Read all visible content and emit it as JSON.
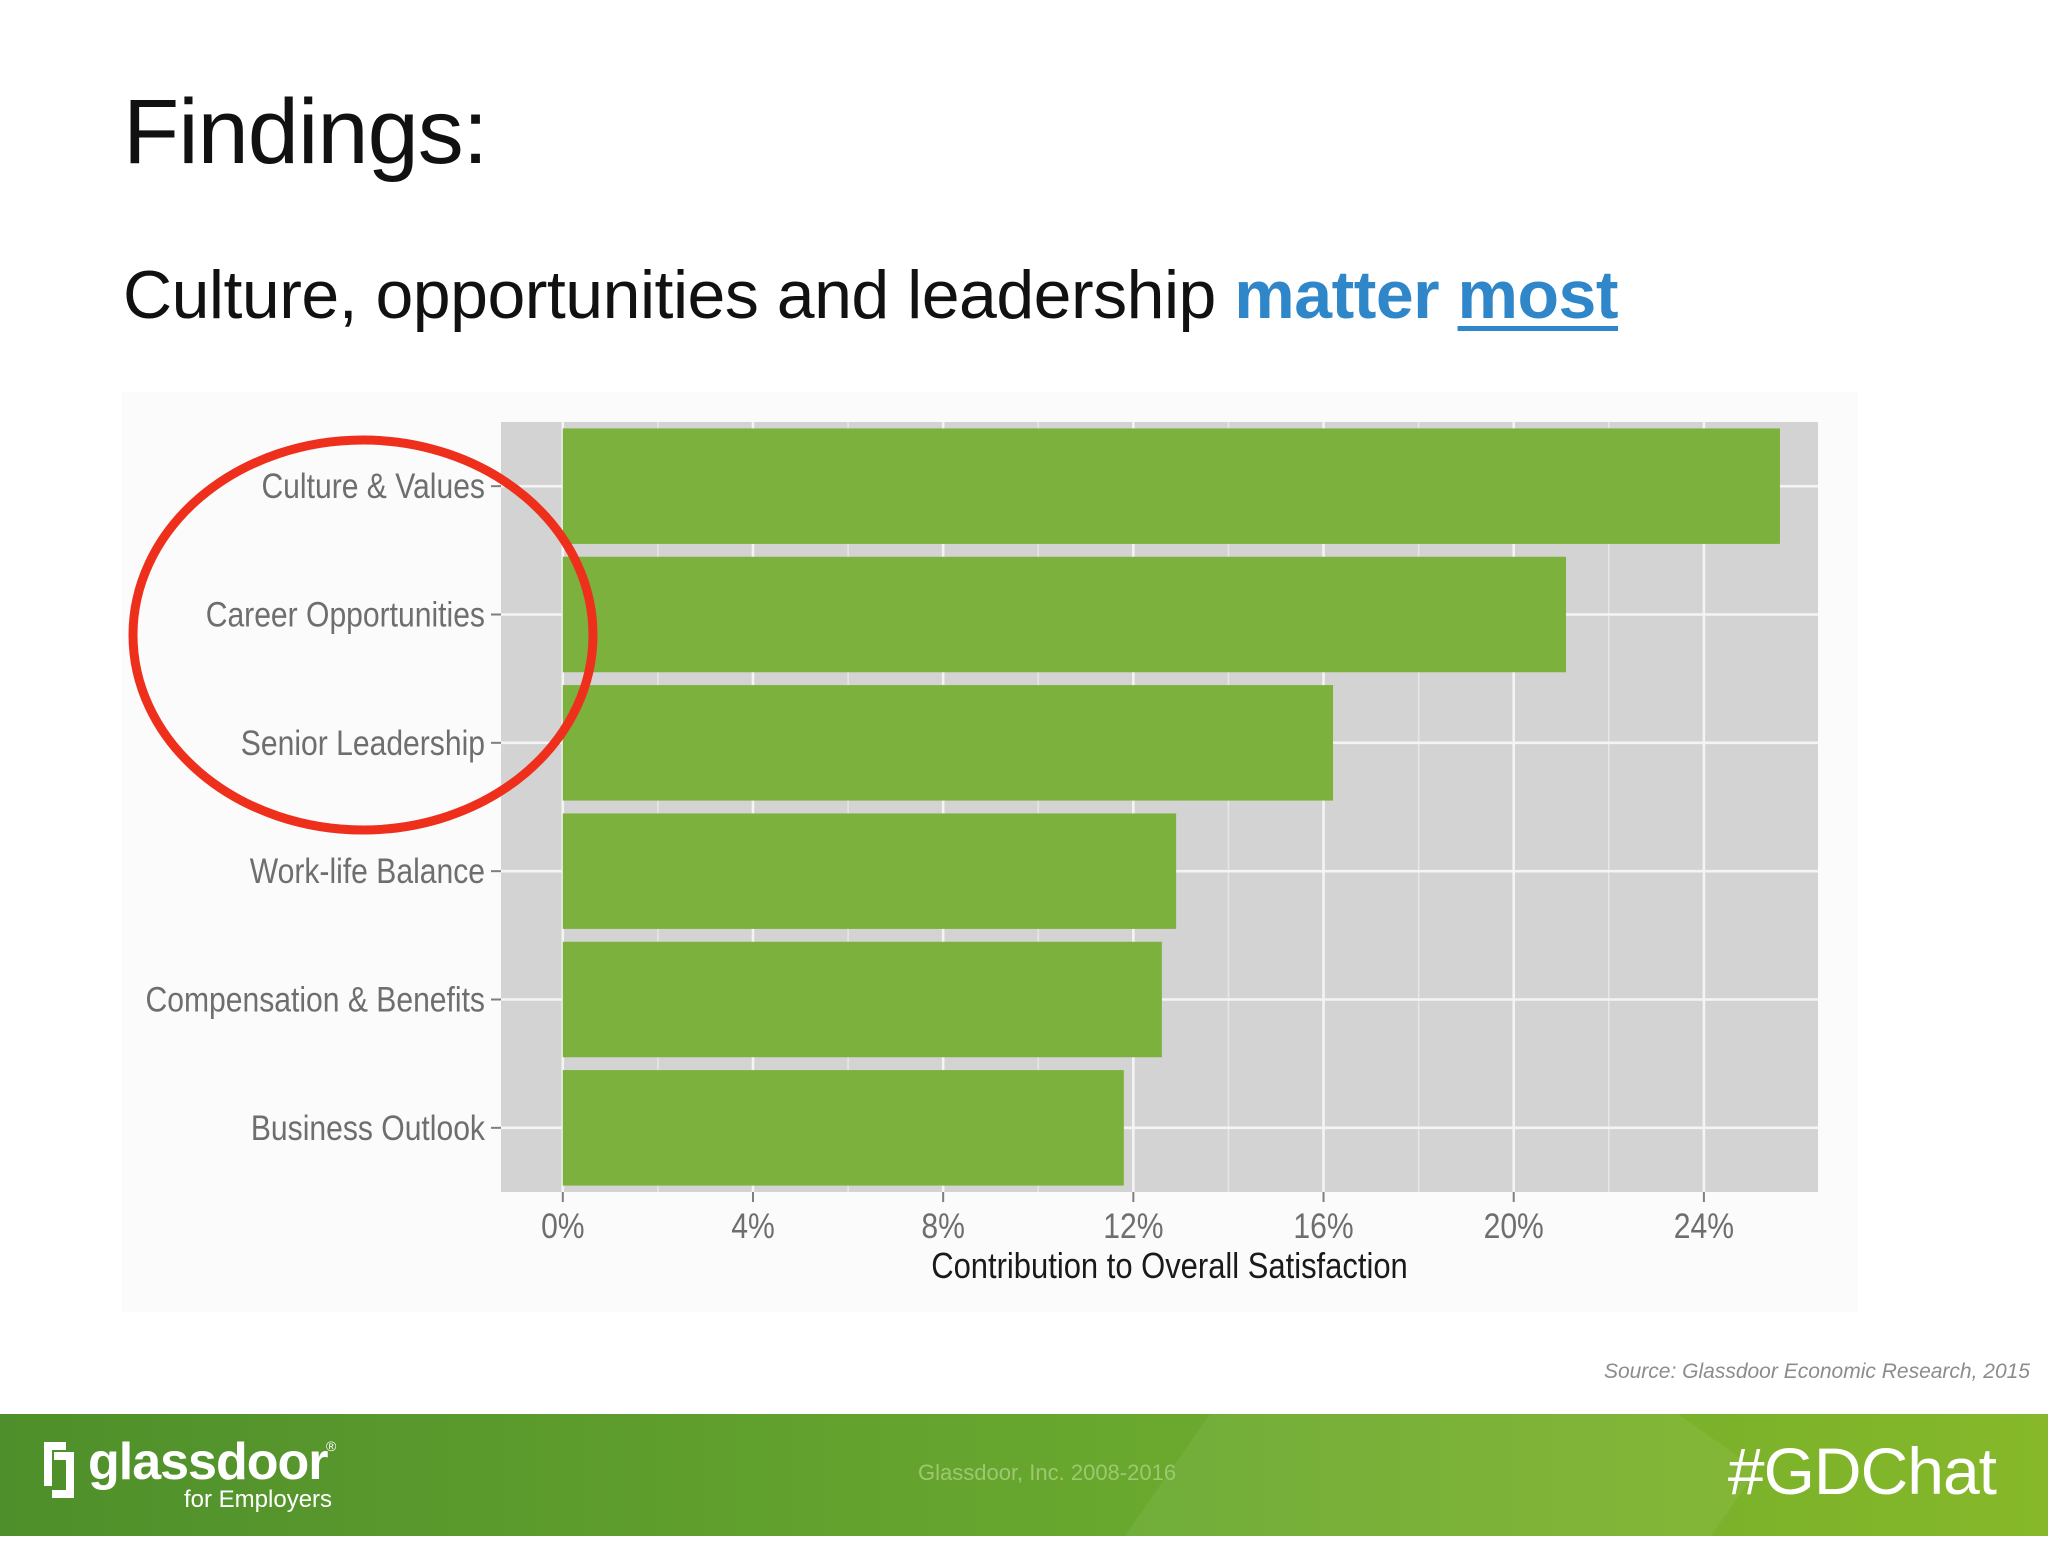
{
  "slide": {
    "title": "Findings:",
    "subtitle_plain": "Culture, opportunities and leadership",
    "subtitle_accent_1": "matter",
    "subtitle_accent_2": "most",
    "source": "Source: Glassdoor Economic Research, 2015"
  },
  "footer": {
    "brand": "glassdoor",
    "registered": "®",
    "brand_sub": "for Employers",
    "copyright": "Glassdoor, Inc. 2008-2016",
    "hashtag": "#GDChat"
  },
  "colors": {
    "accent_blue": "#2f86c9",
    "bar_green": "#7db13d",
    "panel_gray": "#d3d3d3",
    "highlight_circle": "#ee2f1b",
    "footer_green": "#69a82e"
  },
  "chart_data": {
    "type": "bar",
    "orientation": "horizontal",
    "categories": [
      "Culture & Values",
      "Career Opportunities",
      "Senior Leadership",
      "Work-life Balance",
      "Compensation & Benefits",
      "Business Outlook"
    ],
    "values": [
      25.6,
      21.1,
      16.2,
      12.9,
      12.6,
      11.8
    ],
    "xlabel": "Contribution to Overall Satisfaction",
    "ylabel": "",
    "xlim": [
      -1.3,
      26.4
    ],
    "xticks": [
      0,
      4,
      8,
      12,
      16,
      20,
      24
    ],
    "xtick_labels": [
      "0%",
      "4%",
      "8%",
      "12%",
      "16%",
      "20%",
      "24%"
    ],
    "grid": true,
    "highlighted_categories": [
      "Culture & Values",
      "Career Opportunities",
      "Senior Leadership"
    ]
  }
}
